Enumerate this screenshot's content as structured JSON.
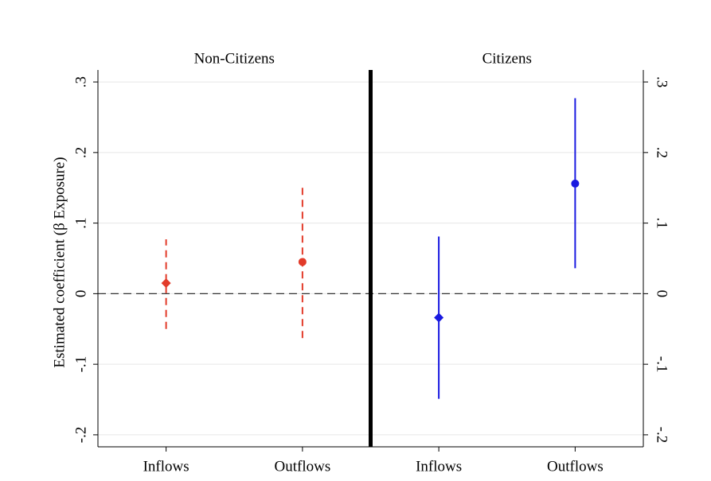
{
  "chart_data": {
    "type": "coefplot",
    "y_label": "Estimated coefficient (β Exposure)",
    "ylim": [
      -0.217,
      0.317
    ],
    "yticks": [
      {
        "value": -0.2,
        "label": "-.2"
      },
      {
        "value": -0.1,
        "label": "-.1"
      },
      0,
      {
        "value": 0.1,
        "label": ".1"
      },
      {
        "value": 0.2,
        "label": ".2"
      },
      {
        "value": 0.3,
        "label": ".3"
      }
    ],
    "grid": true,
    "reference_line": 0,
    "panels": [
      {
        "title": "Non-Citizens",
        "color": "#e23b2a",
        "dashed": true,
        "categories": [
          "Inflows",
          "Outflows"
        ],
        "markers": [
          "diamond",
          "circle"
        ],
        "values": [
          0.015,
          0.045
        ],
        "lower": [
          -0.05,
          -0.063
        ],
        "upper": [
          0.077,
          0.152
        ]
      },
      {
        "title": "Citizens",
        "color": "#1a1ae0",
        "dashed": false,
        "categories": [
          "Inflows",
          "Outflows"
        ],
        "markers": [
          "diamond",
          "circle"
        ],
        "values": [
          -0.034,
          0.156
        ],
        "lower": [
          -0.149,
          0.036
        ],
        "upper": [
          0.081,
          0.277
        ]
      }
    ]
  }
}
